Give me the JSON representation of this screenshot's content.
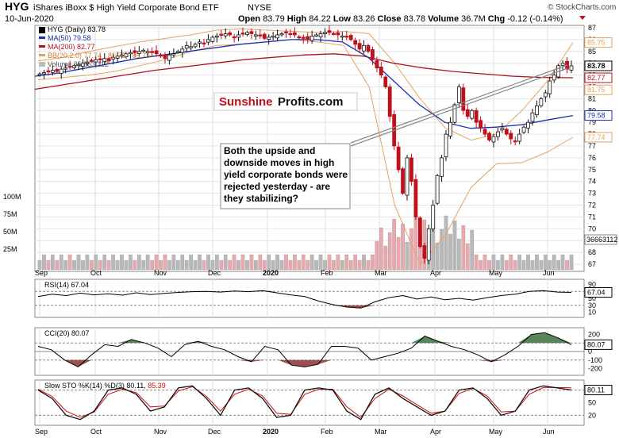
{
  "header": {
    "symbol": "HYG",
    "name": "iShares iBoxx $ High Yield Corporate Bond ETF",
    "exchange": "NYSE",
    "date": "10-Jun-2020",
    "credit": "© StockCharts.com",
    "open_label": "Open",
    "open": "83.79",
    "high_label": "High",
    "high": "84.22",
    "low_label": "Low",
    "low": "83.26",
    "close_label": "Close",
    "close": "83.78",
    "volume_label": "Volume",
    "volume": "36.7M",
    "chg_label": "Chg",
    "chg": "-0.12 (-0.14%)"
  },
  "legend": {
    "price": "HYG (Daily) 83.78",
    "ma50": "MA(50) 79.58",
    "ma200": "MA(200) 82.77",
    "bb": "BB(20,2.0) 77.74 - 81.75 - 85.75",
    "volume": "Volume 36,663,112"
  },
  "annotation": "Both the upside and downside moves in high yield corporate bonds were rejected yesterday - are they stabilizing?",
  "logo": {
    "part1": "Sunshine",
    "part2": "Profits.com"
  },
  "colors": {
    "ma50": "#1a2fb0",
    "ma200": "#b01020",
    "bb": "#e8a060",
    "up_candle": "#111111",
    "down_candle": "#c0101c",
    "vol_up": "#b8b8b8",
    "vol_down": "#e8a8ac",
    "rsi_fill": "#3d7040",
    "cci_fill_pos": "#3d7040",
    "cci_fill_neg": "#8a3030",
    "sto_k": "#111111",
    "sto_d": "#d01010"
  },
  "x_months": [
    "Sep",
    "Oct",
    "Nov",
    "Dec",
    "2020",
    "Feb",
    "Mar",
    "Apr",
    "May",
    "Jun"
  ],
  "price_axis": [
    "87",
    "86",
    "85",
    "84",
    "83",
    "82",
    "81",
    "80",
    "79",
    "78",
    "77",
    "76",
    "75",
    "74",
    "73",
    "72",
    "71",
    "70",
    "69",
    "68",
    "67"
  ],
  "price_tags": [
    "85.75",
    "83.78",
    "82.77",
    "81.75",
    "79.58",
    "77.74"
  ],
  "volume_axis": [
    "100M",
    "75M",
    "50M",
    "25M"
  ],
  "volume_tag": "36663112",
  "rsi": {
    "title": "RSI(14) 67.04",
    "axis": [
      "90",
      "70",
      "50",
      "30",
      "10"
    ],
    "tag": "67.04"
  },
  "cci": {
    "title": "CCI(20) 80.07",
    "axis": [
      "200",
      "100",
      "0",
      "-100",
      "-200"
    ],
    "tag": "80.07"
  },
  "sto": {
    "title": "Slow STO %K(14) %D(3) 80.11,",
    "title2": "85.39",
    "axis": [
      "80",
      "50",
      "20"
    ],
    "tag": "80.11"
  },
  "chart_data": {
    "type": "candlestick",
    "title": "HYG (Daily) 83.78",
    "ylim": [
      66.4,
      87.2
    ],
    "close_series_approx": [
      83.1,
      83.2,
      83.3,
      83.4,
      83.3,
      83.5,
      83.6,
      83.7,
      83.8,
      83.9,
      84.0,
      84.1,
      84.2,
      84.3,
      84.3,
      84.4,
      84.2,
      84.5,
      84.6,
      84.7,
      84.8,
      84.9,
      84.9,
      85.0,
      85.1,
      85.0,
      84.9,
      84.8,
      84.6,
      84.4,
      84.7,
      84.8,
      85.0,
      85.2,
      85.5,
      85.4,
      85.6,
      85.8,
      85.7,
      86.0,
      86.2,
      86.3,
      86.4,
      86.5,
      86.4,
      86.2,
      86.4,
      86.5,
      86.6,
      86.5,
      86.4,
      86.3,
      86.1,
      86.2,
      86.3,
      86.4,
      86.5,
      86.6,
      86.5,
      86.4,
      86.2,
      86.1,
      86.0,
      86.3,
      86.4,
      86.5,
      86.6,
      86.6,
      86.5,
      86.4,
      86.3,
      86.2,
      86.0,
      85.6,
      85.2,
      85.5,
      85.0,
      84.3,
      83.6,
      83.0,
      82.0,
      79.5,
      77.0,
      75.0,
      73.0,
      76.0,
      74.0,
      71.0,
      68.5,
      67.5,
      70.0,
      72.0,
      74.5,
      76.0,
      78.0,
      79.0,
      80.5,
      82.0,
      80.0,
      79.5,
      80.0,
      79.0,
      78.5,
      78.0,
      77.5,
      77.8,
      78.2,
      78.5,
      78.0,
      77.6,
      77.4,
      78.0,
      78.6,
      79.0,
      79.8,
      80.4,
      81.0,
      81.5,
      82.5,
      83.0,
      83.8,
      84.0,
      83.5,
      83.78
    ],
    "ma50_approx": [
      82.9,
      83.2,
      83.6,
      84.0,
      84.4,
      84.7,
      85.0,
      85.3,
      85.6,
      85.8,
      86.0,
      86.0,
      85.8,
      84.5,
      82.5,
      80.5,
      79.0,
      78.5,
      78.6,
      78.8,
      79.2,
      79.58
    ],
    "ma200_approx": [
      81.8,
      82.2,
      82.6,
      83.0,
      83.4,
      83.7,
      84.0,
      84.3,
      84.5,
      84.7,
      84.8,
      84.6,
      84.0,
      83.6,
      83.3,
      83.1,
      82.9,
      82.8,
      82.77
    ],
    "bb_upper_approx": [
      84.2,
      84.5,
      85.0,
      85.4,
      85.8,
      86.1,
      86.4,
      86.8,
      86.9,
      86.8,
      86.7,
      86.6,
      86.7,
      86.5,
      84.0,
      81.0,
      78.5,
      77.5,
      78.0,
      80.0,
      82.5,
      85.75
    ],
    "bb_lower_approx": [
      82.6,
      82.8,
      83.0,
      83.3,
      83.8,
      84.3,
      85.0,
      85.5,
      85.6,
      85.8,
      86.0,
      85.8,
      85.5,
      82.0,
      72.0,
      67.0,
      69.5,
      73.5,
      75.5,
      75.6,
      76.5,
      77.74
    ],
    "rsi_approx": [
      55,
      62,
      58,
      65,
      60,
      63,
      59,
      66,
      61,
      64,
      67,
      69,
      70,
      68,
      71,
      69,
      72,
      66,
      60,
      55,
      42,
      32,
      25,
      22,
      40,
      52,
      58,
      48,
      54,
      46,
      50,
      45,
      52,
      58,
      62,
      70,
      72,
      68,
      67.04
    ],
    "cci_approx": [
      60,
      20,
      -100,
      -180,
      -40,
      80,
      60,
      140,
      100,
      40,
      -60,
      80,
      120,
      60,
      20,
      -60,
      -120,
      60,
      20,
      -160,
      -180,
      -150,
      60,
      60,
      40,
      -100,
      -60,
      -20,
      40,
      180,
      120,
      60,
      20,
      -40,
      -120,
      -40,
      60,
      200,
      220,
      160,
      80.07
    ],
    "sto_k_approx": [
      80,
      60,
      20,
      10,
      30,
      80,
      85,
      70,
      30,
      40,
      85,
      90,
      60,
      20,
      80,
      85,
      60,
      15,
      20,
      80,
      85,
      80,
      30,
      10,
      70,
      85,
      60,
      40,
      20,
      30,
      80,
      85,
      60,
      20,
      30,
      80,
      90,
      85,
      80.11
    ],
    "sto_d_approx": [
      82,
      65,
      30,
      15,
      28,
      70,
      82,
      74,
      40,
      42,
      78,
      88,
      65,
      30,
      70,
      82,
      66,
      25,
      22,
      70,
      82,
      82,
      40,
      15,
      60,
      82,
      66,
      45,
      25,
      30,
      72,
      84,
      66,
      28,
      30,
      70,
      86,
      86,
      85.39
    ]
  }
}
